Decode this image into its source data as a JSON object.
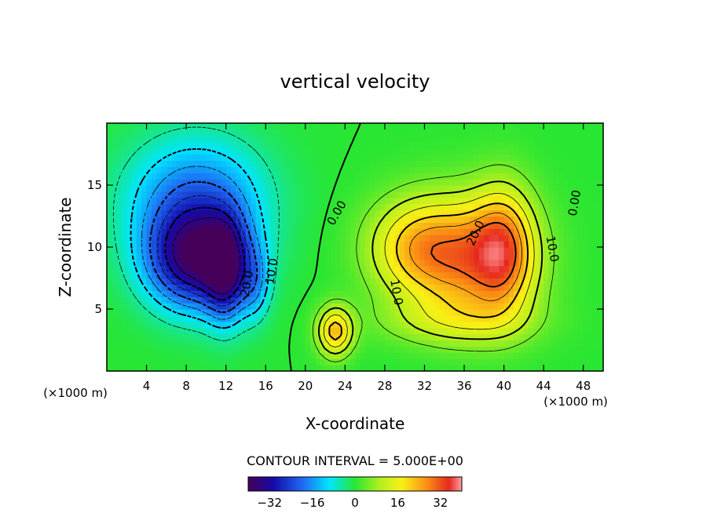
{
  "chart_data": {
    "type": "heatmap",
    "title": "vertical velocity",
    "xlabel": "X-coordinate",
    "ylabel": "Z-coordinate",
    "x_unit_left": "(×1000 m)",
    "x_unit_right": "(×1000 m)",
    "xlim": [
      0,
      50
    ],
    "ylim": [
      0,
      20
    ],
    "x_ticks": [
      4,
      8,
      12,
      16,
      20,
      24,
      28,
      32,
      36,
      40,
      44,
      48
    ],
    "y_ticks": [
      5,
      10,
      15
    ],
    "contour_interval_label": "CONTOUR INTERVAL = 5.000E+00",
    "contour_interval": 5.0,
    "colorbar": {
      "range": [
        -40,
        40
      ],
      "ticks": [
        -32,
        -16,
        0,
        16,
        32
      ],
      "tick_labels": [
        "−32",
        "−16",
        "0",
        "16",
        "32"
      ]
    },
    "contour_labels": [
      {
        "text": "20.0",
        "x": 14.5,
        "y": 7.0,
        "angle": -80
      },
      {
        "text": "10.0",
        "x": 17.0,
        "y": 8.0,
        "angle": -80
      },
      {
        "text": "0.00",
        "x": 23.5,
        "y": 12.6,
        "angle": -60
      },
      {
        "text": "10.0",
        "x": 28.8,
        "y": 6.3,
        "angle": 80
      },
      {
        "text": "20.0",
        "x": 37.5,
        "y": 11.0,
        "angle": -65
      },
      {
        "text": "10.0",
        "x": 44.5,
        "y": 9.8,
        "angle": 80
      },
      {
        "text": "0.00",
        "x": 47.5,
        "y": 13.5,
        "angle": -80
      }
    ],
    "cells": [
      {
        "x": 9,
        "z": 9,
        "w": -35,
        "sx": 5,
        "sz": 4
      },
      {
        "x": 12,
        "z": 8,
        "w": -22,
        "sx": 2,
        "sz": 4
      },
      {
        "x": 9,
        "z": 14,
        "w": -18,
        "sx": 7,
        "sz": 5
      },
      {
        "x": 15,
        "z": 7,
        "w": -10,
        "sx": 1.5,
        "sz": 3
      },
      {
        "x": 37,
        "z": 9,
        "w": 24,
        "sx": 6,
        "sz": 5
      },
      {
        "x": 40,
        "z": 10,
        "w": 18,
        "sx": 3,
        "sz": 5
      },
      {
        "x": 31,
        "z": 10,
        "w": 18,
        "sx": 5,
        "sz": 4
      },
      {
        "x": 23,
        "z": 3.2,
        "w": 22,
        "sx": 1.8,
        "sz": 2
      },
      {
        "x": 35,
        "z": 4,
        "w": 8,
        "sx": 8,
        "sz": 2
      }
    ],
    "grid": false
  }
}
